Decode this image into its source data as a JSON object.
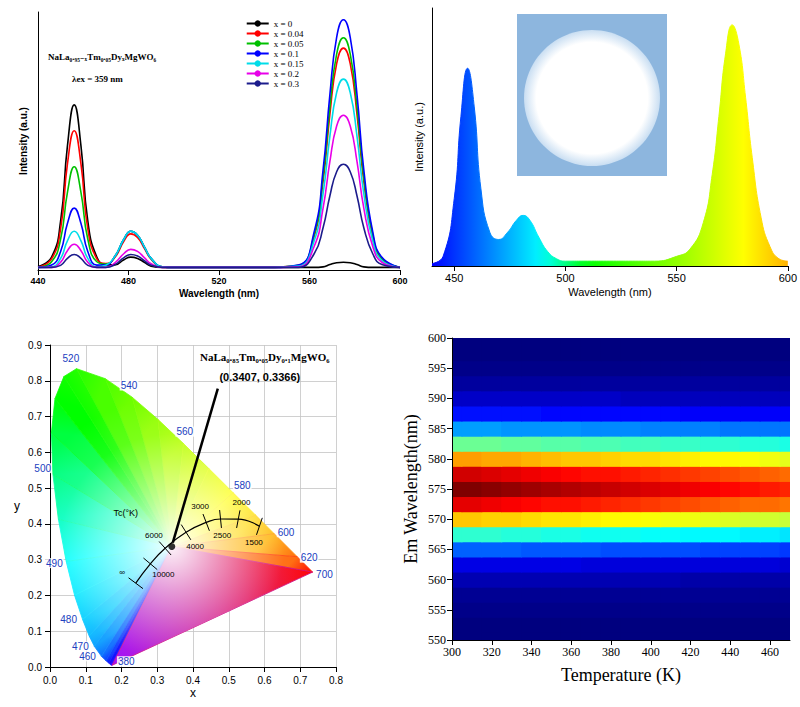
{
  "chart_data": [
    {
      "type": "line",
      "xlabel": "Wavelength (nm)",
      "ylabel": "Intensity (a.u.)",
      "annotations": [
        "NaLa₀.₉₅₋ₓTm₀.₀₅DyₓMgWO₆",
        "λex = 359 nm"
      ],
      "x": [
        440,
        446,
        450,
        453,
        456,
        459,
        462,
        466,
        470,
        474,
        478,
        481,
        484,
        487,
        490,
        495,
        500,
        520,
        540,
        555,
        562,
        566,
        569,
        572,
        575,
        578,
        581,
        584,
        588,
        592,
        600
      ],
      "series": [
        {
          "name": "x = 0",
          "color": "#000000",
          "values": [
            0.013,
            0.05,
            0.19,
            0.48,
            0.64,
            0.48,
            0.19,
            0.05,
            0.02,
            0.02,
            0.04,
            0.05,
            0.045,
            0.03,
            0.015,
            0.01,
            0.01,
            0.01,
            0.01,
            0.01,
            0.01,
            0.012,
            0.021,
            0.028,
            0.03,
            0.028,
            0.021,
            0.012,
            0.01,
            0.01,
            0.01
          ]
        },
        {
          "name": "x = 0.04",
          "color": "#ff0000",
          "values": [
            0.011,
            0.043,
            0.16,
            0.41,
            0.54,
            0.41,
            0.16,
            0.043,
            0.025,
            0.049,
            0.112,
            0.14,
            0.126,
            0.084,
            0.042,
            0.011,
            0.01,
            0.01,
            0.01,
            0.017,
            0.129,
            0.344,
            0.602,
            0.8,
            0.86,
            0.8,
            0.602,
            0.344,
            0.129,
            0.043,
            0.01
          ]
        },
        {
          "name": "x = 0.05",
          "color": "#00c000",
          "values": [
            0.01,
            0.032,
            0.12,
            0.3,
            0.4,
            0.3,
            0.12,
            0.032,
            0.023,
            0.053,
            0.12,
            0.15,
            0.135,
            0.09,
            0.045,
            0.012,
            0.01,
            0.01,
            0.01,
            0.018,
            0.135,
            0.36,
            0.63,
            0.837,
            0.9,
            0.837,
            0.63,
            0.36,
            0.135,
            0.045,
            0.01
          ]
        },
        {
          "name": "x = 0.1",
          "color": "#0000ff",
          "values": [
            0.01,
            0.019,
            0.072,
            0.18,
            0.24,
            0.18,
            0.072,
            0.019,
            0.02,
            0.053,
            0.12,
            0.15,
            0.135,
            0.09,
            0.045,
            0.012,
            0.01,
            0.01,
            0.01,
            0.019,
            0.146,
            0.388,
            0.679,
            0.902,
            0.97,
            0.902,
            0.679,
            0.388,
            0.146,
            0.049,
            0.01
          ]
        },
        {
          "name": "x = 0.15",
          "color": "#00dce8",
          "values": [
            0.01,
            0.012,
            0.045,
            0.113,
            0.15,
            0.113,
            0.045,
            0.012,
            0.018,
            0.053,
            0.12,
            0.15,
            0.135,
            0.09,
            0.045,
            0.012,
            0.01,
            0.01,
            0.01,
            0.015,
            0.111,
            0.296,
            0.518,
            0.688,
            0.74,
            0.688,
            0.518,
            0.296,
            0.111,
            0.037,
            0.01
          ]
        },
        {
          "name": "x = 0.2",
          "color": "#e800e8",
          "values": [
            0.01,
            0.01,
            0.03,
            0.075,
            0.1,
            0.075,
            0.03,
            0.01,
            0.01,
            0.028,
            0.064,
            0.08,
            0.072,
            0.048,
            0.024,
            0.01,
            0.01,
            0.01,
            0.01,
            0.012,
            0.09,
            0.24,
            0.42,
            0.558,
            0.6,
            0.558,
            0.42,
            0.24,
            0.09,
            0.03,
            0.01
          ]
        },
        {
          "name": "x = 0.3",
          "color": "#1c1c8c",
          "values": [
            0.01,
            0.01,
            0.018,
            0.045,
            0.06,
            0.045,
            0.018,
            0.01,
            0.01,
            0.021,
            0.048,
            0.06,
            0.054,
            0.036,
            0.018,
            0.01,
            0.01,
            0.01,
            0.01,
            0.01,
            0.062,
            0.164,
            0.287,
            0.381,
            0.41,
            0.381,
            0.287,
            0.164,
            0.062,
            0.021,
            0.01
          ]
        }
      ],
      "xlim": [
        440,
        600
      ],
      "xticks": [
        440,
        480,
        520,
        560,
        600
      ],
      "ylim": [
        0,
        1
      ],
      "tick_labels": "x",
      "grid": false,
      "legend": "top"
    },
    {
      "type": "area",
      "xlabel": "Wavelength (nm)",
      "ylabel": "Intensity (a.u.)",
      "x": [
        440,
        445,
        450,
        453,
        456,
        459,
        462,
        466,
        470,
        474,
        478,
        481,
        484,
        488,
        492,
        496,
        500,
        510,
        520,
        530,
        540,
        550,
        556,
        562,
        566,
        569,
        572,
        575,
        578,
        581,
        584,
        588,
        592,
        596,
        600
      ],
      "values": [
        0.01,
        0.04,
        0.28,
        0.62,
        0.82,
        0.66,
        0.32,
        0.14,
        0.11,
        0.14,
        0.19,
        0.21,
        0.19,
        0.12,
        0.06,
        0.03,
        0.02,
        0.02,
        0.02,
        0.02,
        0.02,
        0.04,
        0.07,
        0.18,
        0.38,
        0.62,
        0.88,
        1.0,
        0.92,
        0.7,
        0.45,
        0.2,
        0.08,
        0.03,
        0.02
      ],
      "xlim": [
        440,
        600
      ],
      "xticks": [
        450,
        500,
        550,
        600
      ],
      "ylim": [
        0,
        1.07
      ],
      "tick_labels": "x",
      "grid": false
    },
    {
      "type": "chromaticity",
      "title": "NaLa₀.₈₅Tm₀.₀₅Dy₀.₁MgWO₆",
      "xlabel": "x",
      "ylabel": "y",
      "point": {
        "x": 0.3407,
        "y": 0.3366,
        "label": "(0.3407, 0.3366)"
      },
      "spectral_locus": {
        "wavelength": [
          380,
          420,
          440,
          450,
          460,
          470,
          475,
          480,
          485,
          490,
          495,
          500,
          505,
          510,
          515,
          520,
          530,
          540,
          550,
          560,
          570,
          580,
          590,
          600,
          620,
          700
        ],
        "x": [
          0.1741,
          0.1714,
          0.1644,
          0.1566,
          0.144,
          0.1241,
          0.1096,
          0.0913,
          0.0687,
          0.0454,
          0.0235,
          0.0082,
          0.0039,
          0.0139,
          0.0389,
          0.0743,
          0.1547,
          0.2296,
          0.3016,
          0.3731,
          0.4441,
          0.5125,
          0.5752,
          0.627,
          0.6915,
          0.7347
        ],
        "y": [
          0.005,
          0.0051,
          0.0109,
          0.0177,
          0.0297,
          0.0578,
          0.0868,
          0.1327,
          0.2007,
          0.295,
          0.4127,
          0.5384,
          0.6548,
          0.7502,
          0.812,
          0.8338,
          0.8059,
          0.7543,
          0.6923,
          0.6245,
          0.5547,
          0.4866,
          0.4242,
          0.3725,
          0.3083,
          0.2653
        ],
        "labeled": [
          380,
          460,
          470,
          480,
          490,
          500,
          520,
          540,
          560,
          580,
          600,
          620,
          700
        ]
      },
      "planckian_title": "Tc(°K)",
      "planckian_locus": {
        "x": [
          0.5857,
          0.5267,
          0.477,
          0.4369,
          0.3805,
          0.3221,
          0.2807,
          0.2399
        ],
        "y": [
          0.3931,
          0.4133,
          0.4137,
          0.4041,
          0.3768,
          0.3318,
          0.2884,
          0.2342
        ],
        "labels": [
          "1500",
          "2000",
          "2500",
          "3000",
          "4000",
          "6000",
          "10000",
          "∞"
        ]
      },
      "xlim": [
        0,
        0.8
      ],
      "xticks": [
        {
          "value": 0,
          "label": "0.0"
        },
        0.1,
        0.2,
        0.3,
        0.4,
        0.5,
        0.6,
        0.7,
        0.8
      ],
      "ylim": [
        0,
        0.9
      ],
      "yticks": [
        {
          "value": 0,
          "label": "0.0"
        },
        0.1,
        0.2,
        0.3,
        0.4,
        0.5,
        0.6,
        0.7,
        0.8,
        0.9
      ],
      "grid": true
    },
    {
      "type": "heatmap",
      "xlabel": "Temperature (K)",
      "ylabel": "Em Wavelength(nm)",
      "x": [
        300,
        310,
        320,
        330,
        340,
        350,
        360,
        370,
        380,
        390,
        400,
        410,
        420,
        430,
        440,
        450,
        460,
        470
      ],
      "y": [
        550,
        552.5,
        555,
        557.5,
        560,
        562.5,
        565,
        567.5,
        570,
        572.5,
        575,
        577.5,
        580,
        582.5,
        585,
        587.5,
        590,
        592.5,
        595,
        597.5,
        600
      ],
      "z": [
        [
          0,
          0,
          0,
          0,
          0,
          0,
          0,
          0,
          0,
          0,
          0,
          0,
          0,
          0,
          0,
          0,
          0,
          0
        ],
        [
          0,
          0,
          0,
          0,
          0,
          0,
          0,
          0,
          0,
          0,
          0,
          0,
          0,
          0,
          0,
          0,
          0,
          0
        ],
        [
          0.01,
          0.01,
          0.01,
          0.01,
          0.01,
          0.01,
          0.01,
          0.01,
          0.01,
          0.01,
          0.01,
          0.01,
          0.01,
          0.01,
          0.01,
          0.01,
          0.01,
          0.01
        ],
        [
          0.02,
          0.02,
          0.02,
          0.02,
          0.02,
          0.02,
          0.02,
          0.02,
          0.02,
          0.02,
          0.02,
          0.02,
          0.02,
          0.02,
          0.02,
          0.02,
          0.02,
          0.02
        ],
        [
          0.05,
          0.05,
          0.05,
          0.05,
          0.05,
          0.05,
          0.05,
          0.05,
          0.05,
          0.05,
          0.05,
          0.05,
          0.04,
          0.04,
          0.04,
          0.04,
          0.04,
          0.04
        ],
        [
          0.1,
          0.1,
          0.1,
          0.1,
          0.1,
          0.1,
          0.1,
          0.09,
          0.09,
          0.09,
          0.09,
          0.09,
          0.09,
          0.09,
          0.09,
          0.09,
          0.09,
          0.08
        ],
        [
          0.22,
          0.22,
          0.22,
          0.22,
          0.21,
          0.21,
          0.21,
          0.21,
          0.2,
          0.2,
          0.2,
          0.2,
          0.2,
          0.19,
          0.19,
          0.19,
          0.19,
          0.18
        ],
        [
          0.42,
          0.42,
          0.42,
          0.41,
          0.41,
          0.4,
          0.4,
          0.39,
          0.39,
          0.39,
          0.38,
          0.38,
          0.37,
          0.37,
          0.37,
          0.36,
          0.36,
          0.35
        ],
        [
          0.68,
          0.68,
          0.67,
          0.67,
          0.66,
          0.65,
          0.65,
          0.64,
          0.63,
          0.63,
          0.62,
          0.61,
          0.61,
          0.6,
          0.59,
          0.58,
          0.58,
          0.57
        ],
        [
          0.9,
          0.9,
          0.89,
          0.88,
          0.87,
          0.86,
          0.86,
          0.85,
          0.84,
          0.83,
          0.82,
          0.81,
          0.8,
          0.79,
          0.78,
          0.77,
          0.77,
          0.76
        ],
        [
          1,
          1,
          0.99,
          0.98,
          0.97,
          0.96,
          0.95,
          0.94,
          0.93,
          0.92,
          0.91,
          0.9,
          0.89,
          0.88,
          0.87,
          0.86,
          0.85,
          0.84
        ],
        [
          0.92,
          0.92,
          0.91,
          0.9,
          0.89,
          0.88,
          0.87,
          0.86,
          0.86,
          0.85,
          0.84,
          0.83,
          0.82,
          0.81,
          0.8,
          0.79,
          0.78,
          0.77
        ],
        [
          0.72,
          0.72,
          0.71,
          0.71,
          0.7,
          0.69,
          0.68,
          0.68,
          0.67,
          0.66,
          0.66,
          0.65,
          0.64,
          0.63,
          0.63,
          0.62,
          0.61,
          0.6
        ],
        [
          0.48,
          0.48,
          0.48,
          0.47,
          0.47,
          0.46,
          0.46,
          0.45,
          0.45,
          0.44,
          0.44,
          0.43,
          0.43,
          0.42,
          0.42,
          0.41,
          0.41,
          0.4
        ],
        [
          0.28,
          0.28,
          0.28,
          0.27,
          0.27,
          0.27,
          0.27,
          0.26,
          0.26,
          0.26,
          0.25,
          0.25,
          0.25,
          0.25,
          0.24,
          0.24,
          0.24,
          0.24
        ],
        [
          0.14,
          0.14,
          0.14,
          0.14,
          0.14,
          0.13,
          0.13,
          0.13,
          0.13,
          0.13,
          0.13,
          0.13,
          0.12,
          0.12,
          0.12,
          0.12,
          0.12,
          0.12
        ],
        [
          0.07,
          0.07,
          0.07,
          0.07,
          0.07,
          0.07,
          0.07,
          0.07,
          0.07,
          0.06,
          0.06,
          0.06,
          0.06,
          0.06,
          0.06,
          0.06,
          0.06,
          0.06
        ],
        [
          0.03,
          0.03,
          0.03,
          0.03,
          0.03,
          0.03,
          0.03,
          0.03,
          0.03,
          0.03,
          0.03,
          0.03,
          0.03,
          0.03,
          0.03,
          0.03,
          0.03,
          0.03
        ],
        [
          0.01,
          0.01,
          0.01,
          0.01,
          0.01,
          0.01,
          0.01,
          0.01,
          0.01,
          0.01,
          0.01,
          0.01,
          0.01,
          0.01,
          0.01,
          0.01,
          0.01,
          0.01
        ],
        [
          0,
          0,
          0,
          0,
          0,
          0,
          0,
          0,
          0,
          0,
          0,
          0,
          0,
          0,
          0,
          0,
          0,
          0
        ],
        [
          0,
          0,
          0,
          0,
          0,
          0,
          0,
          0,
          0,
          0,
          0,
          0,
          0,
          0,
          0,
          0,
          0,
          0
        ]
      ],
      "zlim": [
        0,
        1
      ],
      "xlim": [
        300,
        470
      ],
      "xticks": [
        300,
        320,
        340,
        360,
        380,
        400,
        420,
        440,
        460
      ],
      "ylim": [
        550,
        600
      ],
      "yticks": [
        550,
        555,
        560,
        565,
        570,
        575,
        580,
        585,
        590,
        595,
        600
      ],
      "grid": false
    }
  ]
}
